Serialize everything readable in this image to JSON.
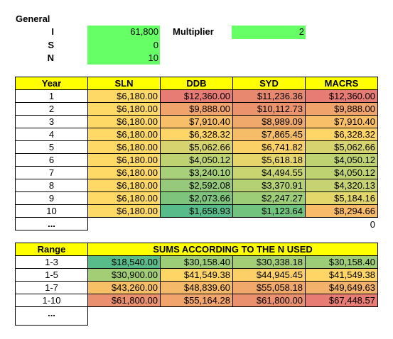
{
  "general": {
    "title": "General",
    "labels": [
      "I",
      "S",
      "N"
    ],
    "values": [
      "61,800",
      "0",
      "10"
    ]
  },
  "multiplier": {
    "label": "Multiplier",
    "value": "2"
  },
  "depreciation_table": {
    "headers": [
      "Year",
      "SLN",
      "DDB",
      "SYD",
      "MACRS"
    ],
    "rows": [
      [
        "1",
        "$6,180.00",
        "$12,360.00",
        "$11,236.36",
        "$12,360.00"
      ],
      [
        "2",
        "$6,180.00",
        "$9,888.00",
        "$10,112.73",
        "$9,888.00"
      ],
      [
        "3",
        "$6,180.00",
        "$7,910.40",
        "$8,989.09",
        "$7,910.40"
      ],
      [
        "4",
        "$6,180.00",
        "$6,328.32",
        "$7,865.45",
        "$6,328.32"
      ],
      [
        "5",
        "$6,180.00",
        "$5,062.66",
        "$6,741.82",
        "$5,062.66"
      ],
      [
        "6",
        "$6,180.00",
        "$4,050.12",
        "$5,618.18",
        "$4,050.12"
      ],
      [
        "7",
        "$6,180.00",
        "$3,240.10",
        "$4,494.55",
        "$4,050.12"
      ],
      [
        "8",
        "$6,180.00",
        "$2,592.08",
        "$3,370.91",
        "$4,320.13"
      ],
      [
        "9",
        "$6,180.00",
        "$2,073.66",
        "$2,247.27",
        "$5,184.16"
      ],
      [
        "10",
        "$6,180.00",
        "$1,658.93",
        "$1,123.64",
        "$8,294.66"
      ]
    ],
    "colors": [
      [
        "#ffd966",
        "#e67c73",
        "#e8896f",
        "#e67c73"
      ],
      [
        "#ffd966",
        "#f1a36c",
        "#eb936d",
        "#f1a36c"
      ],
      [
        "#ffd966",
        "#f8bf68",
        "#f0a86b",
        "#f8bf68"
      ],
      [
        "#ffd966",
        "#fed567",
        "#f5bd68",
        "#fed567"
      ],
      [
        "#ffd966",
        "#d7d46f",
        "#fad166",
        "#d7d46f"
      ],
      [
        "#ffd966",
        "#bed272",
        "#e5d56b",
        "#bed272"
      ],
      [
        "#ffd966",
        "#a8cf79",
        "#c9d570",
        "#bed272"
      ],
      [
        "#ffd966",
        "#96c97b",
        "#b4d174",
        "#c7d372"
      ],
      [
        "#ffd966",
        "#7ec47c",
        "#9ecd78",
        "#e3d66a"
      ],
      [
        "#ffd966",
        "#57bb8a",
        "#72c37d",
        "#f7bb69"
      ]
    ],
    "ellipsis_row": "...",
    "trailing_value": "0"
  },
  "sums_table": {
    "range_header": "Range",
    "sums_header": "SUMS ACCORDING TO THE N USED",
    "rows": [
      [
        "1-3",
        "$18,540.00",
        "$30,158.40",
        "$30,338.18",
        "$30,158.40"
      ],
      [
        "1-5",
        "$30,900.00",
        "$41,549.38",
        "$44,945.45",
        "$41,549.38"
      ],
      [
        "1-7",
        "$43,260.00",
        "$48,839.60",
        "$55,058.18",
        "$49,649.63"
      ],
      [
        "1-10",
        "$61,800.00",
        "$55,164.28",
        "$61,800.00",
        "$67,448.57"
      ]
    ],
    "colors": [
      [
        "#57bb8a",
        "#9ecd78",
        "#a3ce76",
        "#9ecd78"
      ],
      [
        "#a3ce76",
        "#ffd666",
        "#fcd066",
        "#ffd666"
      ],
      [
        "#f7c067",
        "#f5b96a",
        "#f0a86b",
        "#f3b26b"
      ],
      [
        "#ea906f",
        "#f1a46c",
        "#ea906f",
        "#e67c73"
      ]
    ],
    "ellipsis_row": "..."
  }
}
